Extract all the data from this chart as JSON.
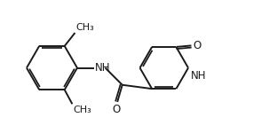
{
  "bg_color": "#ffffff",
  "line_color": "#1a1a1a",
  "line_width": 1.4,
  "font_size": 8.5,
  "figsize": [
    3.12,
    1.5
  ],
  "dpi": 100,
  "xlim": [
    0,
    10
  ],
  "ylim": [
    0,
    4.8
  ]
}
